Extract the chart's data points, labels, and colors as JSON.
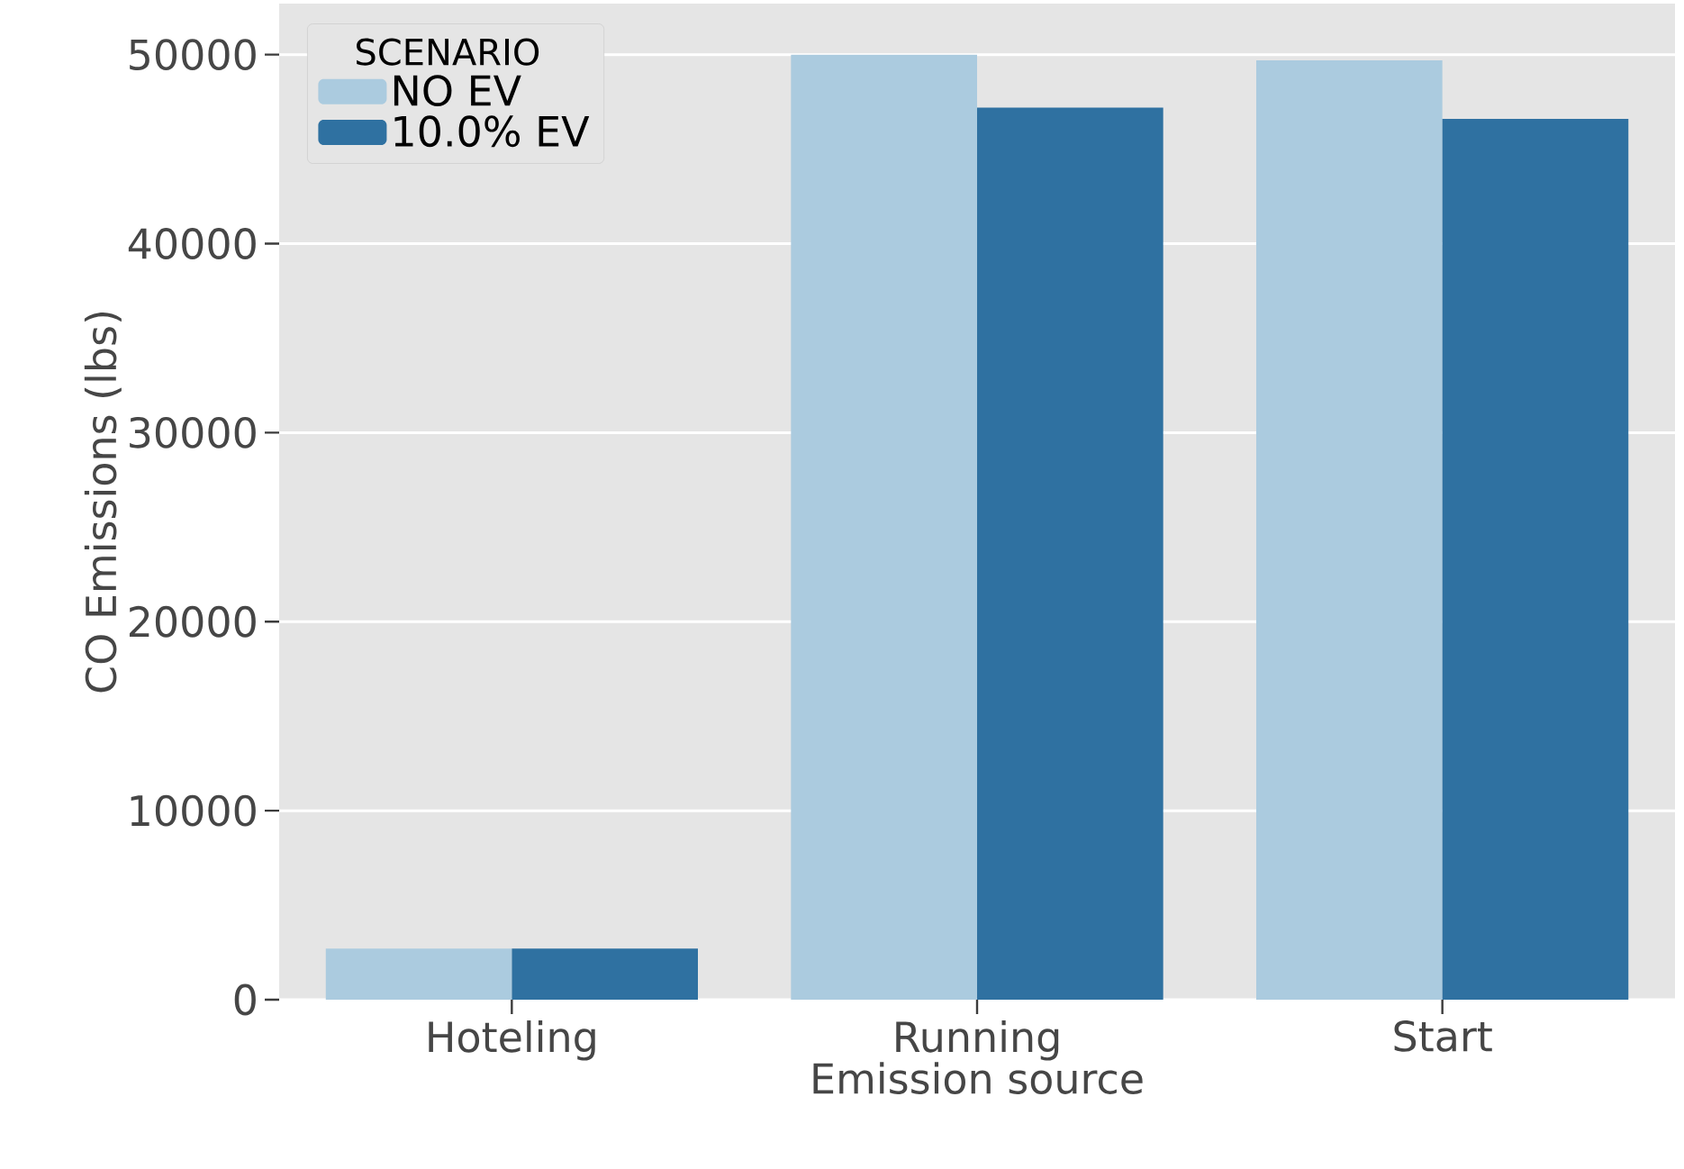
{
  "chart_data": {
    "type": "bar",
    "xlabel": "Emission source",
    "ylabel": "CO Emissions (lbs)",
    "legend_title": "SCENARIO",
    "categories": [
      "Hoteling",
      "Running",
      "Start"
    ],
    "series": [
      {
        "name": "NO EV",
        "color": "#abcbdf",
        "values": [
          2700,
          50000,
          49700
        ]
      },
      {
        "name": "10.0% EV",
        "color": "#2f71a1",
        "values": [
          2700,
          47200,
          46600
        ]
      }
    ],
    "ylim": [
      0,
      52700
    ],
    "yticks": [
      0,
      10000,
      20000,
      30000,
      40000,
      50000
    ],
    "grid": "y",
    "legend": "top left"
  }
}
